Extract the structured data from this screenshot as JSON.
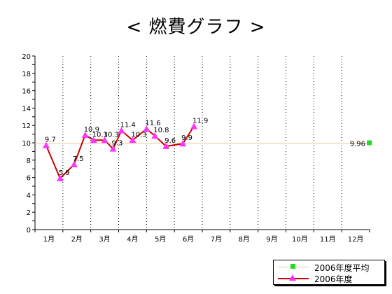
{
  "title": "< 燃費グラフ >",
  "colors": {
    "series_line": "#cc0000",
    "series_marker": "#ff33ff",
    "average_line": "#e8c8a0",
    "average_marker": "#22dd22",
    "vgrid": "#000000"
  },
  "chart_data": {
    "type": "line",
    "title": "< 燃費グラフ >",
    "x_tick_labels": [
      "1月",
      "2月",
      "3月",
      "4月",
      "5月",
      "6月",
      "7月",
      "8月",
      "9月",
      "10月",
      "11月",
      "12月"
    ],
    "y_tick_labels": [
      "0",
      "2",
      "4",
      "6",
      "8",
      "10",
      "12",
      "14",
      "16",
      "18",
      "20"
    ],
    "ylim": [
      0,
      20
    ],
    "xlim": [
      0.5,
      12.5
    ],
    "vertical_dotted_grid": true,
    "legend_position": "bottom-right",
    "series": [
      {
        "name": "2006年度",
        "x": [
          0.9,
          1.4,
          1.9,
          2.3,
          2.6,
          3.0,
          3.3,
          3.6,
          4.0,
          4.5,
          4.8,
          5.2,
          5.8,
          6.2
        ],
        "values": [
          9.7,
          5.9,
          7.5,
          10.9,
          10.3,
          10.3,
          9.3,
          11.4,
          10.3,
          11.6,
          10.8,
          9.6,
          9.9,
          11.9
        ],
        "labels": [
          "9.7",
          "5.9",
          "7.5",
          "10.9",
          "10.3",
          "10.3",
          "9.3",
          "11.4",
          "10.3",
          "11.6",
          "10.8",
          "9.6",
          "9.9",
          "11.9"
        ]
      },
      {
        "name": "2006年度平均",
        "value": 9.96,
        "label": "9.96"
      }
    ]
  }
}
